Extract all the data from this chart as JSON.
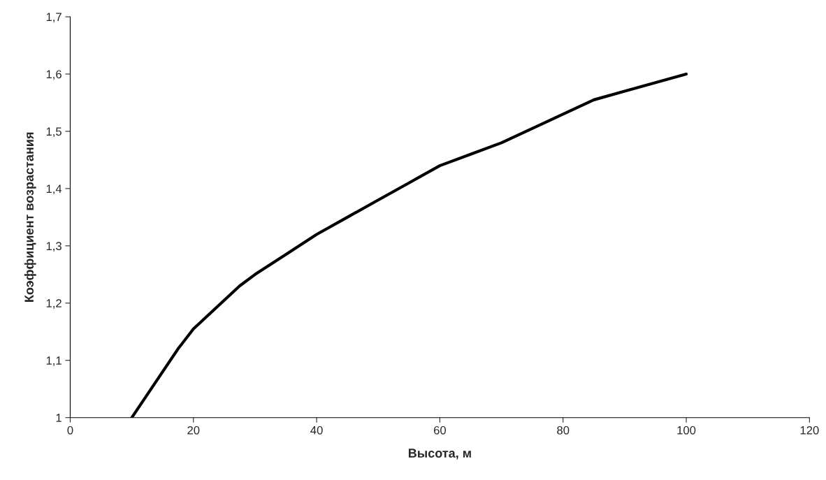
{
  "chart_data": {
    "type": "line",
    "xlabel": "Высота, м",
    "ylabel": "Коэффициент возрастания",
    "x": [
      10,
      12.5,
      15,
      17.5,
      20,
      22.5,
      25,
      27.5,
      30,
      35,
      40,
      45,
      50,
      55,
      60,
      65,
      70,
      75,
      80,
      85,
      90,
      95,
      100
    ],
    "series": [
      {
        "color": "#000000",
        "values": [
          1.0,
          1.04,
          1.08,
          1.12,
          1.155,
          1.18,
          1.205,
          1.23,
          1.25,
          1.285,
          1.32,
          1.35,
          1.38,
          1.41,
          1.44,
          1.46,
          1.48,
          1.505,
          1.53,
          1.555,
          1.57,
          1.585,
          1.6
        ]
      }
    ],
    "xlim": [
      0,
      120
    ],
    "xticks": [
      0,
      20,
      40,
      60,
      80,
      100,
      120
    ],
    "ylim": [
      1,
      1.7
    ],
    "yticks": [
      1,
      {
        "value": 1.1,
        "label": "1,1"
      },
      {
        "value": 1.2,
        "label": "1,2"
      },
      {
        "value": 1.3,
        "label": "1,3"
      },
      {
        "value": 1.4,
        "label": "1,4"
      },
      {
        "value": 1.5,
        "label": "1,5"
      },
      {
        "value": 1.6,
        "label": "1,6"
      },
      {
        "value": 1.7,
        "label": "1,7"
      }
    ],
    "grid": false,
    "legend": false,
    "marker": "none",
    "line_style": "solid"
  }
}
